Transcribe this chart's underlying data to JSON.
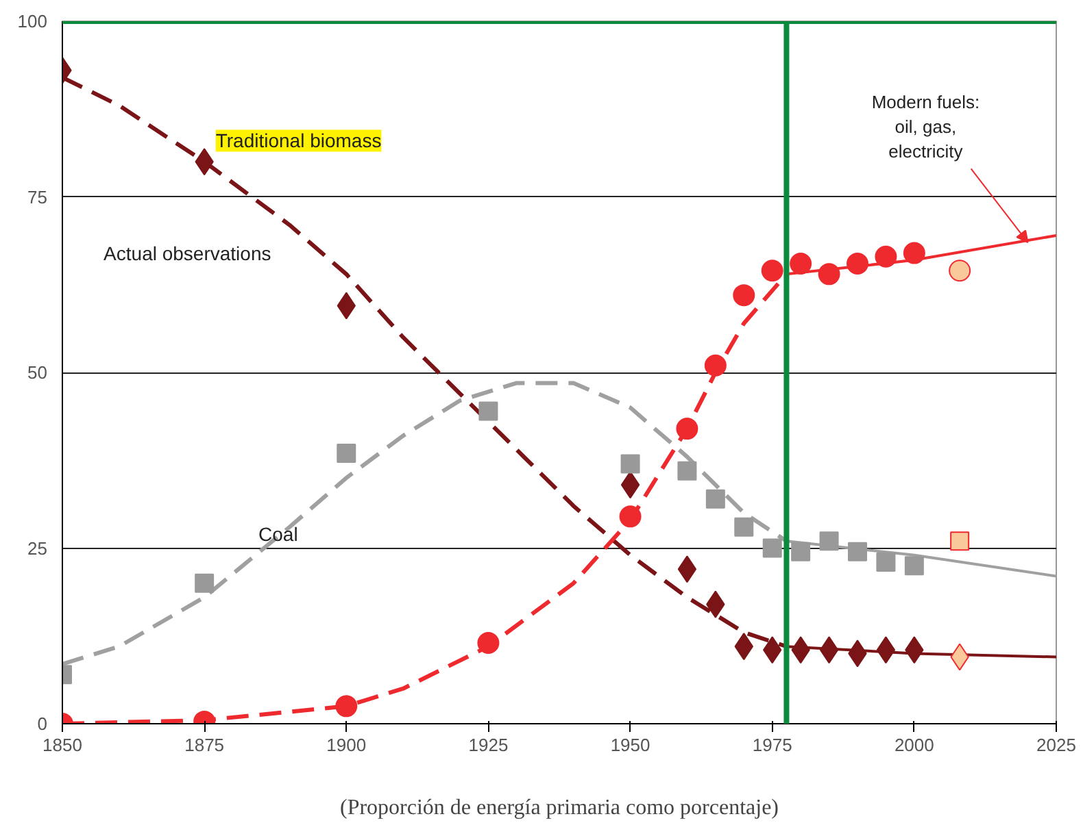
{
  "chart_data": {
    "type": "scatter",
    "xlabel": "(Proporción de energía primaria como porcentaje)",
    "xlim": [
      1850,
      2025
    ],
    "xticks": [
      1850,
      1875,
      1900,
      1925,
      1950,
      1975,
      2000,
      2025
    ],
    "ylim": [
      0,
      100
    ],
    "yticks": [
      0,
      25,
      50,
      75,
      100
    ],
    "grid": "y",
    "annotations": [
      "Traditional biomass",
      "Coal",
      "Actual observations",
      {
        "text": "Modern fuels:\noil, gas,\nelectricity",
        "x": 2020,
        "y": 68.5
      }
    ],
    "ref_lines": [
      {
        "axis": "x",
        "value": 1977.5,
        "color": "#0a8a3c"
      },
      {
        "axis": "y",
        "value": 100,
        "color": "#0a8a3c"
      }
    ],
    "series": [
      {
        "type": "line",
        "line_style": "dashed",
        "color": "#7b1416",
        "x": [
          1850,
          1860,
          1875,
          1890,
          1900,
          1910,
          1920,
          1930,
          1940,
          1950,
          1960,
          1970,
          1977.5
        ],
        "values": [
          92,
          88,
          80,
          71,
          64,
          55,
          47,
          39,
          31,
          24,
          18,
          13,
          11
        ]
      },
      {
        "type": "line",
        "line_style": "solid",
        "color": "#7b1416",
        "x": [
          1977.5,
          2000,
          2025
        ],
        "values": [
          11,
          10,
          9.5
        ]
      },
      {
        "type": "line",
        "line_style": "dashed",
        "color": "#a0a0a0",
        "x": [
          1850,
          1860,
          1875,
          1890,
          1900,
          1910,
          1920,
          1930,
          1940,
          1950,
          1960,
          1970,
          1977.5
        ],
        "values": [
          8.5,
          11,
          18,
          28,
          35,
          41,
          46,
          48.5,
          48.5,
          45,
          38,
          30,
          26
        ]
      },
      {
        "type": "line",
        "line_style": "solid",
        "color": "#a0a0a0",
        "x": [
          1977.5,
          2000,
          2025
        ],
        "values": [
          26,
          24,
          21
        ]
      },
      {
        "type": "line",
        "line_style": "dashed",
        "color": "#ee2a2e",
        "x": [
          1850,
          1875,
          1900,
          1910,
          1925,
          1940,
          1950,
          1960,
          1965,
          1970,
          1977.5
        ],
        "values": [
          0,
          0.5,
          2.5,
          5,
          11,
          20,
          29,
          42,
          50,
          57,
          64
        ]
      },
      {
        "type": "line",
        "line_style": "solid",
        "color": "#ee2a2e",
        "x": [
          1977.5,
          2000,
          2025
        ],
        "values": [
          64,
          66,
          69.5
        ]
      },
      {
        "marker": "diamond",
        "color": "#7b1416",
        "x": [
          1850,
          1875,
          1900,
          1950,
          1960,
          1965,
          1970,
          1975,
          1980,
          1985,
          1990,
          1995,
          2000
        ],
        "values": [
          93,
          80,
          59.5,
          34,
          22,
          17,
          11,
          10.5,
          10.5,
          10.5,
          10,
          10.5,
          10.5
        ]
      },
      {
        "marker": "circle",
        "color": "#ee2a2e",
        "x": [
          1850,
          1875,
          1900,
          1925,
          1950,
          1960,
          1965,
          1970,
          1975,
          1980,
          1985,
          1990,
          1995,
          2000
        ],
        "values": [
          0,
          0.3,
          2.5,
          11.5,
          29.5,
          42,
          51,
          61,
          64.5,
          65.5,
          64,
          65.5,
          66.5,
          67
        ]
      },
      {
        "marker": "square",
        "color": "#999999",
        "x": [
          1850,
          1875,
          1900,
          1925,
          1950,
          1960,
          1965,
          1970,
          1975,
          1980,
          1985,
          1990,
          1995,
          2000
        ],
        "values": [
          7,
          20,
          38.5,
          44.5,
          37,
          36,
          32,
          28,
          25,
          24.5,
          26,
          24.5,
          23,
          22.5
        ]
      },
      {
        "marker": "circle",
        "color": "#f9c89b",
        "x": [
          2008
        ],
        "values": [
          64.5
        ]
      },
      {
        "marker": "square",
        "color": "#f9c89b",
        "x": [
          2008
        ],
        "values": [
          26
        ]
      },
      {
        "marker": "diamond",
        "color": "#f9c89b",
        "x": [
          2008
        ],
        "values": [
          9.5
        ]
      }
    ]
  }
}
